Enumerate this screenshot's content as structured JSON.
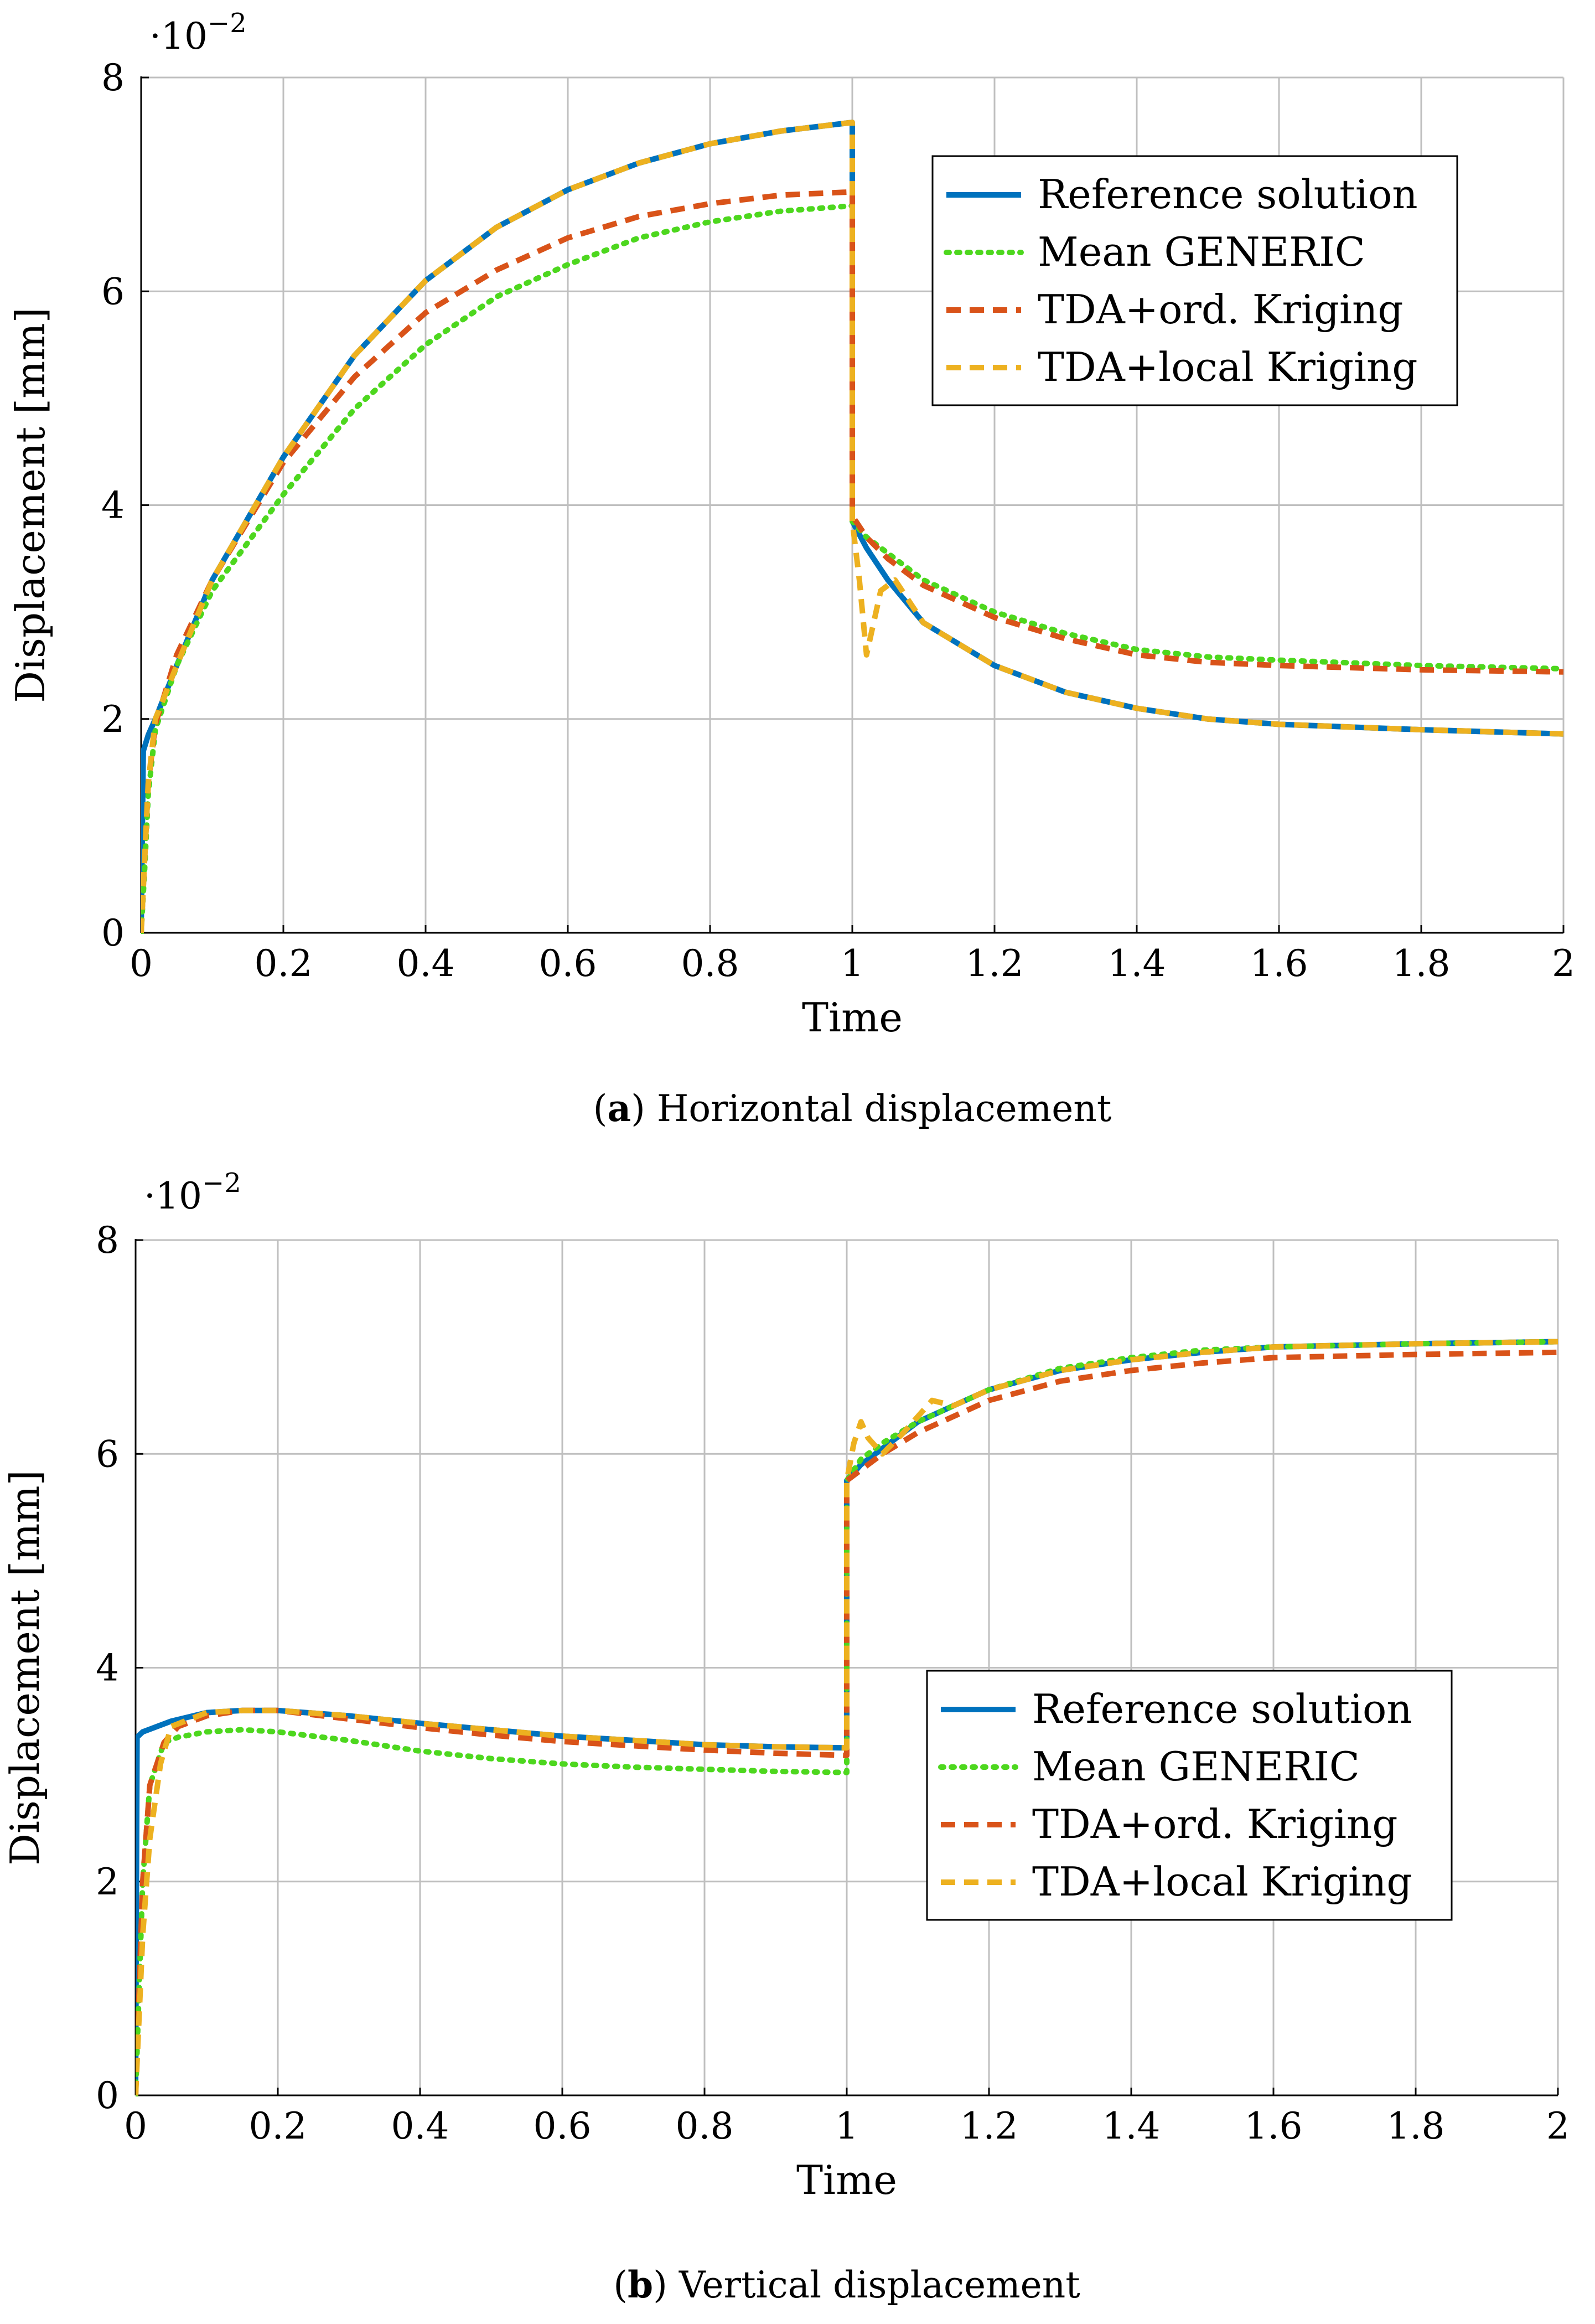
{
  "chart_data": [
    {
      "id": "a",
      "type": "line",
      "title": "",
      "caption": {
        "label": "a",
        "text": "Horizontal displacement"
      },
      "xlabel": "Time",
      "ylabel": "Displacement [mm]",
      "y_multiplier": "·10−2",
      "xlim": [
        0,
        2
      ],
      "ylim": [
        0,
        8
      ],
      "xticks": [
        0,
        0.2,
        0.4,
        0.6,
        0.8,
        1,
        1.2,
        1.4,
        1.6,
        1.8,
        2
      ],
      "xtick_labels": [
        "0",
        "0.2",
        "0.4",
        "0.6",
        "0.8",
        "1",
        "1.2",
        "1.4",
        "1.6",
        "1.8",
        "2"
      ],
      "yticks": [
        0,
        2,
        4,
        6,
        8
      ],
      "ytick_labels": [
        "0",
        "2",
        "4",
        "6",
        "8"
      ],
      "grid": true,
      "legend_position": "top-right",
      "series": [
        {
          "name": "Reference solution",
          "color": "#0072BD",
          "style": "solid",
          "x": [
            0,
            0.003,
            0.01,
            0.02,
            0.05,
            0.1,
            0.2,
            0.3,
            0.4,
            0.5,
            0.6,
            0.7,
            0.8,
            0.9,
            1.0,
            1.0,
            1.02,
            1.05,
            1.1,
            1.2,
            1.3,
            1.4,
            1.5,
            1.6,
            1.8,
            2.0
          ],
          "y": [
            0,
            1.7,
            1.85,
            2.0,
            2.5,
            3.3,
            4.45,
            5.4,
            6.1,
            6.6,
            6.95,
            7.2,
            7.38,
            7.5,
            7.58,
            3.85,
            3.6,
            3.3,
            2.9,
            2.5,
            2.25,
            2.1,
            2.0,
            1.95,
            1.9,
            1.86
          ]
        },
        {
          "name": "Mean GENERIC",
          "color": "#4DD71E",
          "style": "dotted",
          "x": [
            0,
            0.005,
            0.01,
            0.02,
            0.05,
            0.1,
            0.2,
            0.3,
            0.4,
            0.5,
            0.6,
            0.7,
            0.8,
            0.9,
            1.0,
            1.0,
            1.02,
            1.05,
            1.1,
            1.2,
            1.3,
            1.4,
            1.5,
            1.6,
            1.8,
            2.0
          ],
          "y": [
            0,
            0.6,
            1.3,
            1.9,
            2.5,
            3.2,
            4.1,
            4.9,
            5.5,
            5.95,
            6.25,
            6.5,
            6.65,
            6.75,
            6.8,
            3.85,
            3.7,
            3.55,
            3.3,
            3.0,
            2.8,
            2.65,
            2.58,
            2.55,
            2.5,
            2.47
          ]
        },
        {
          "name": "TDA+ord. Kriging",
          "color": "#D95319",
          "style": "dashed",
          "x": [
            0,
            0.005,
            0.01,
            0.02,
            0.05,
            0.1,
            0.2,
            0.3,
            0.4,
            0.5,
            0.6,
            0.7,
            0.8,
            0.9,
            1.0,
            1.0,
            1.02,
            1.05,
            1.1,
            1.2,
            1.3,
            1.4,
            1.5,
            1.6,
            1.8,
            2.0
          ],
          "y": [
            0,
            0.7,
            1.4,
            1.95,
            2.6,
            3.3,
            4.4,
            5.2,
            5.8,
            6.2,
            6.5,
            6.7,
            6.82,
            6.9,
            6.93,
            3.9,
            3.7,
            3.5,
            3.25,
            2.95,
            2.75,
            2.6,
            2.53,
            2.5,
            2.46,
            2.44
          ]
        },
        {
          "name": "TDA+local Kriging",
          "color": "#EDB120",
          "style": "dashed",
          "x": [
            0,
            0.005,
            0.01,
            0.02,
            0.05,
            0.1,
            0.2,
            0.3,
            0.4,
            0.5,
            0.6,
            0.7,
            0.8,
            0.9,
            1.0,
            1.0,
            1.01,
            1.02,
            1.04,
            1.06,
            1.1,
            1.2,
            1.3,
            1.4,
            1.5,
            1.6,
            1.8,
            2.0
          ],
          "y": [
            0,
            0.7,
            1.4,
            2.0,
            2.5,
            3.3,
            4.45,
            5.4,
            6.1,
            6.6,
            6.95,
            7.2,
            7.38,
            7.5,
            7.58,
            3.85,
            3.3,
            2.6,
            3.2,
            3.3,
            2.9,
            2.5,
            2.25,
            2.1,
            2.0,
            1.95,
            1.9,
            1.86
          ]
        }
      ]
    },
    {
      "id": "b",
      "type": "line",
      "title": "",
      "caption": {
        "label": "b",
        "text": "Vertical displacement"
      },
      "xlabel": "Time",
      "ylabel": "Displacement [mm]",
      "y_multiplier": "·10−2",
      "xlim": [
        0,
        2
      ],
      "ylim": [
        0,
        8
      ],
      "xticks": [
        0,
        0.2,
        0.4,
        0.6,
        0.8,
        1,
        1.2,
        1.4,
        1.6,
        1.8,
        2
      ],
      "xtick_labels": [
        "0",
        "0.2",
        "0.4",
        "0.6",
        "0.8",
        "1",
        "1.2",
        "1.4",
        "1.6",
        "1.8",
        "2"
      ],
      "yticks": [
        0,
        2,
        4,
        6,
        8
      ],
      "ytick_labels": [
        "0",
        "2",
        "4",
        "6",
        "8"
      ],
      "grid": true,
      "legend_position": "center-right",
      "series": [
        {
          "name": "Reference solution",
          "color": "#0072BD",
          "style": "solid",
          "x": [
            0,
            0.002,
            0.01,
            0.05,
            0.1,
            0.15,
            0.2,
            0.3,
            0.4,
            0.5,
            0.6,
            0.7,
            0.8,
            0.9,
            1.0,
            1.0,
            1.02,
            1.05,
            1.1,
            1.2,
            1.3,
            1.4,
            1.5,
            1.6,
            1.8,
            2.0
          ],
          "y": [
            0,
            3.35,
            3.4,
            3.5,
            3.58,
            3.6,
            3.6,
            3.55,
            3.48,
            3.42,
            3.36,
            3.32,
            3.28,
            3.26,
            3.25,
            5.75,
            5.9,
            6.05,
            6.3,
            6.6,
            6.78,
            6.88,
            6.95,
            7.0,
            7.03,
            7.05
          ]
        },
        {
          "name": "Mean GENERIC",
          "color": "#4DD71E",
          "style": "dotted",
          "x": [
            0,
            0.005,
            0.01,
            0.02,
            0.04,
            0.06,
            0.1,
            0.15,
            0.2,
            0.3,
            0.4,
            0.5,
            0.6,
            0.7,
            0.8,
            0.9,
            1.0,
            1.0,
            1.02,
            1.05,
            1.1,
            1.2,
            1.3,
            1.4,
            1.5,
            1.6,
            1.8,
            2.0
          ],
          "y": [
            0,
            1.0,
            2.0,
            2.9,
            3.3,
            3.35,
            3.4,
            3.42,
            3.4,
            3.32,
            3.22,
            3.15,
            3.1,
            3.07,
            3.05,
            3.03,
            3.02,
            5.75,
            5.95,
            6.1,
            6.3,
            6.6,
            6.8,
            6.9,
            6.97,
            7.0,
            7.03,
            7.05
          ]
        },
        {
          "name": "TDA+ord. Kriging",
          "color": "#D95319",
          "style": "dashed",
          "x": [
            0,
            0.01,
            0.02,
            0.04,
            0.06,
            0.1,
            0.15,
            0.2,
            0.3,
            0.4,
            0.5,
            0.6,
            0.7,
            0.8,
            0.9,
            1.0,
            1.0,
            1.02,
            1.05,
            1.1,
            1.2,
            1.3,
            1.4,
            1.5,
            1.6,
            1.8,
            2.0
          ],
          "y": [
            0,
            2.0,
            2.9,
            3.3,
            3.45,
            3.55,
            3.6,
            3.6,
            3.52,
            3.44,
            3.37,
            3.31,
            3.27,
            3.23,
            3.2,
            3.18,
            5.75,
            5.85,
            6.0,
            6.2,
            6.5,
            6.68,
            6.78,
            6.85,
            6.9,
            6.93,
            6.95
          ]
        },
        {
          "name": "TDA+local Kriging",
          "color": "#EDB120",
          "style": "dashed",
          "x": [
            0,
            0.01,
            0.02,
            0.035,
            0.05,
            0.1,
            0.15,
            0.2,
            0.3,
            0.4,
            0.5,
            0.6,
            0.7,
            0.8,
            0.9,
            1.0,
            1.0,
            1.01,
            1.02,
            1.03,
            1.05,
            1.08,
            1.12,
            1.15,
            1.2,
            1.3,
            1.4,
            1.5,
            1.6,
            1.8,
            2.0
          ],
          "y": [
            0,
            1.5,
            2.4,
            3.1,
            3.45,
            3.58,
            3.6,
            3.6,
            3.55,
            3.48,
            3.42,
            3.36,
            3.32,
            3.28,
            3.26,
            3.25,
            5.75,
            6.1,
            6.3,
            6.15,
            6.0,
            6.2,
            6.5,
            6.45,
            6.6,
            6.78,
            6.88,
            6.95,
            7.0,
            7.03,
            7.05
          ]
        }
      ]
    }
  ]
}
